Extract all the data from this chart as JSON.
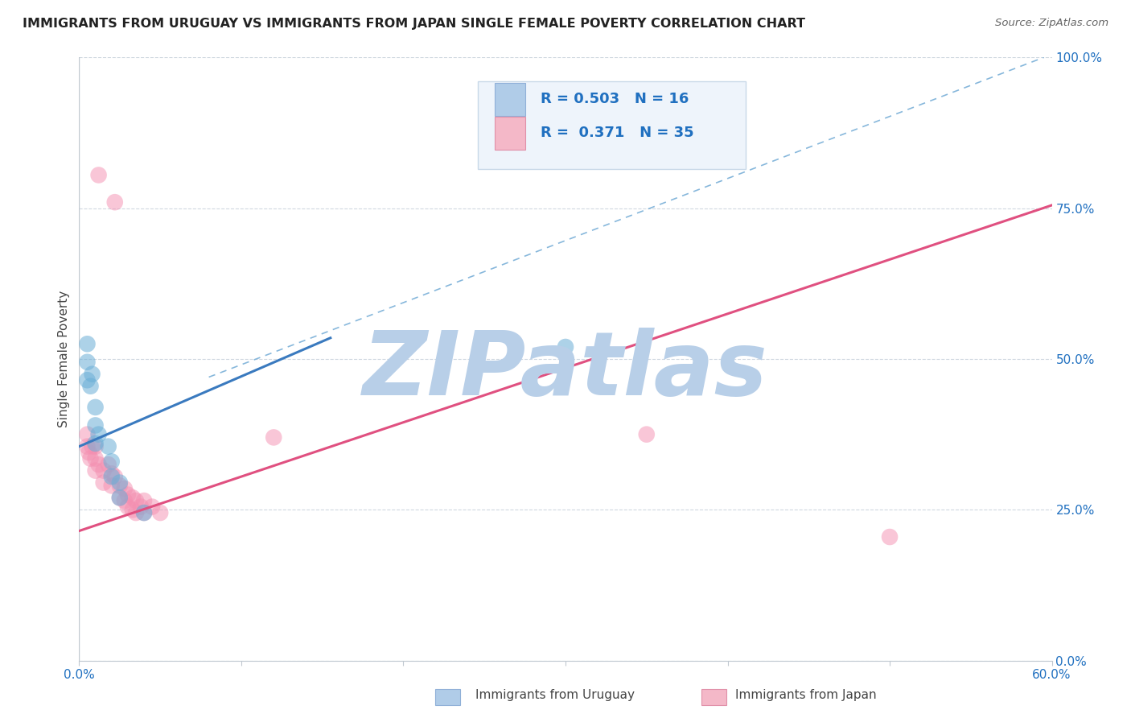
{
  "title": "IMMIGRANTS FROM URUGUAY VS IMMIGRANTS FROM JAPAN SINGLE FEMALE POVERTY CORRELATION CHART",
  "source": "Source: ZipAtlas.com",
  "ylabel": "Single Female Poverty",
  "x_min": 0.0,
  "x_max": 0.6,
  "y_min": 0.0,
  "y_max": 1.0,
  "x_ticks": [
    0.0,
    0.1,
    0.2,
    0.3,
    0.4,
    0.5,
    0.6
  ],
  "x_tick_labels": [
    "0.0%",
    "",
    "",
    "",
    "",
    "",
    "60.0%"
  ],
  "y_ticks_right": [
    0.0,
    0.25,
    0.5,
    0.75,
    1.0
  ],
  "y_tick_labels_right": [
    "0.0%",
    "25.0%",
    "50.0%",
    "75.0%",
    "100.0%"
  ],
  "watermark": "ZIPatlas",
  "watermark_color": "#b8cfe8",
  "background_color": "#ffffff",
  "uruguay_color": "#6aaed6",
  "japan_color": "#f48fb1",
  "uruguay_line_color": "#3a7abf",
  "japan_line_color": "#e05080",
  "dash_line_color": "#7ab0d8",
  "legend_box_color": "#eef4fb",
  "legend_border_color": "#c8d8e8",
  "legend_text_color": "#2070c0",
  "uruguay_line_x": [
    0.0,
    0.155
  ],
  "uruguay_line_y": [
    0.355,
    0.535
  ],
  "japan_line_x": [
    0.0,
    0.6
  ],
  "japan_line_y": [
    0.215,
    0.755
  ],
  "dash_line_x": [
    0.08,
    0.595
  ],
  "dash_line_y": [
    0.47,
    1.0
  ],
  "uruguay_dots": [
    [
      0.005,
      0.525
    ],
    [
      0.005,
      0.495
    ],
    [
      0.005,
      0.465
    ],
    [
      0.007,
      0.455
    ],
    [
      0.008,
      0.475
    ],
    [
      0.01,
      0.42
    ],
    [
      0.01,
      0.39
    ],
    [
      0.01,
      0.36
    ],
    [
      0.012,
      0.375
    ],
    [
      0.018,
      0.355
    ],
    [
      0.02,
      0.33
    ],
    [
      0.02,
      0.305
    ],
    [
      0.025,
      0.295
    ],
    [
      0.025,
      0.27
    ],
    [
      0.04,
      0.245
    ],
    [
      0.3,
      0.52
    ]
  ],
  "japan_dots": [
    [
      0.012,
      0.805
    ],
    [
      0.022,
      0.76
    ],
    [
      0.005,
      0.375
    ],
    [
      0.005,
      0.355
    ],
    [
      0.006,
      0.345
    ],
    [
      0.007,
      0.335
    ],
    [
      0.008,
      0.355
    ],
    [
      0.01,
      0.355
    ],
    [
      0.01,
      0.335
    ],
    [
      0.01,
      0.315
    ],
    [
      0.012,
      0.325
    ],
    [
      0.015,
      0.315
    ],
    [
      0.015,
      0.295
    ],
    [
      0.018,
      0.325
    ],
    [
      0.02,
      0.31
    ],
    [
      0.02,
      0.29
    ],
    [
      0.022,
      0.305
    ],
    [
      0.025,
      0.29
    ],
    [
      0.025,
      0.27
    ],
    [
      0.028,
      0.285
    ],
    [
      0.028,
      0.265
    ],
    [
      0.03,
      0.275
    ],
    [
      0.03,
      0.255
    ],
    [
      0.033,
      0.27
    ],
    [
      0.033,
      0.25
    ],
    [
      0.035,
      0.265
    ],
    [
      0.035,
      0.245
    ],
    [
      0.038,
      0.255
    ],
    [
      0.04,
      0.265
    ],
    [
      0.04,
      0.245
    ],
    [
      0.045,
      0.255
    ],
    [
      0.05,
      0.245
    ],
    [
      0.12,
      0.37
    ],
    [
      0.35,
      0.375
    ],
    [
      0.5,
      0.205
    ]
  ]
}
